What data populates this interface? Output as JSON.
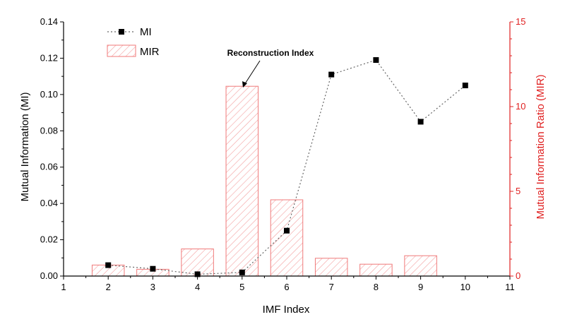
{
  "chart_data": {
    "type": "bar+line",
    "x": [
      1,
      2,
      3,
      4,
      5,
      6,
      7,
      8,
      9,
      10,
      11
    ],
    "x_tick_labels": [
      "1",
      "2",
      "3",
      "4",
      "5",
      "6",
      "7",
      "8",
      "9",
      "10",
      "11"
    ],
    "xlabel": "IMF Index",
    "xlim": [
      1,
      11
    ],
    "ylabel_left": "Mutual Information (MI)",
    "ylim_left": [
      0,
      0.14
    ],
    "y_left_ticks": [
      "0.00",
      "0.02",
      "0.04",
      "0.06",
      "0.08",
      "0.10",
      "0.12",
      "0.14"
    ],
    "ylabel_right": "Mutual Information Ratio (MIR)",
    "ylim_right": [
      0,
      15
    ],
    "y_right_ticks": [
      "0",
      "5",
      "10",
      "15"
    ],
    "series": [
      {
        "name": "MI",
        "kind": "line",
        "axis": "left",
        "x": [
          2,
          3,
          4,
          5,
          6,
          7,
          8,
          9,
          10
        ],
        "values": [
          0.006,
          0.004,
          0.001,
          0.002,
          0.025,
          0.111,
          0.119,
          0.085,
          0.105
        ],
        "color": "#000000"
      },
      {
        "name": "MIR",
        "kind": "bar",
        "axis": "right",
        "x": [
          2,
          3,
          4,
          5,
          6,
          7,
          8,
          9
        ],
        "values": [
          0.65,
          0.4,
          1.6,
          11.2,
          4.5,
          1.05,
          0.7,
          1.2
        ],
        "color": "#f07a7a"
      }
    ],
    "annotation": {
      "text": "Reconstruction Index",
      "x": 5,
      "axis": "right",
      "y": 11.2
    },
    "legend_placement": "top-left",
    "grid": false
  }
}
